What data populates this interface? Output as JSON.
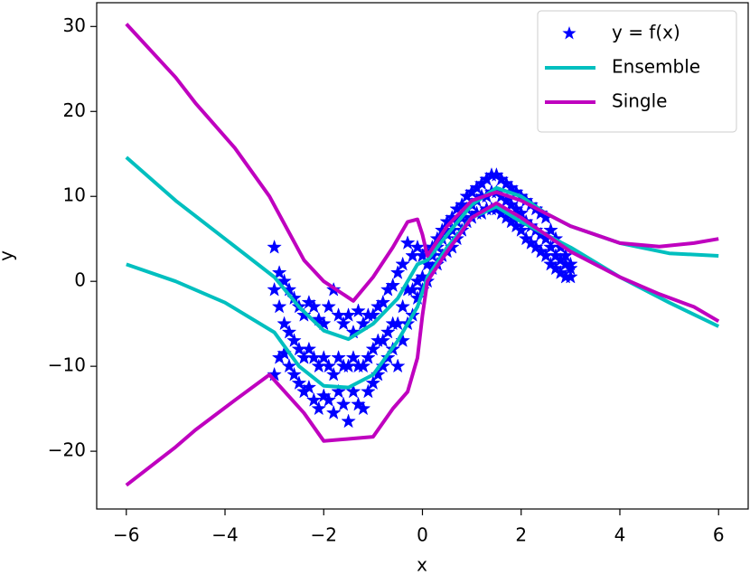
{
  "chart_data": {
    "type": "line",
    "xlabel": "x",
    "ylabel": "y",
    "xlim": [
      -6.6,
      6.6
    ],
    "ylim": [
      -26.8,
      32.8
    ],
    "xticks": [
      {
        "value": -6,
        "label": "−6"
      },
      {
        "value": -4,
        "label": "−4"
      },
      {
        "value": -2,
        "label": "−2"
      },
      0,
      2,
      4,
      6
    ],
    "yticks": [
      {
        "value": -20,
        "label": "−20"
      },
      {
        "value": -10,
        "label": "−10"
      },
      0,
      10,
      20,
      30
    ],
    "legend": "upper right",
    "series": [
      {
        "name": "y = f(x)",
        "type": "scatter",
        "marker": "star",
        "color": "#0000ff",
        "x": [
          -3,
          -2.9,
          -2.8,
          -2.7,
          -2.6,
          -2.5,
          -2.4,
          -2.3,
          -2.2,
          -2.1,
          -2,
          -1.9,
          -1.8,
          -1.7,
          -1.6,
          -1.5,
          -1.4,
          -1.3,
          -1.2,
          -1.1,
          -1,
          -0.9,
          -0.8,
          -0.7,
          -0.6,
          -0.5,
          -0.4,
          -0.3,
          -0.2,
          -0.1,
          0,
          0.1,
          0.2,
          0.3,
          0.4,
          0.5,
          0.6,
          0.7,
          0.8,
          0.9,
          1,
          1.1,
          1.2,
          1.3,
          1.4,
          1.5,
          1.6,
          1.7,
          1.8,
          1.9,
          2,
          2.1,
          2.2,
          2.3,
          2.4,
          2.5,
          2.6,
          2.7,
          2.8,
          2.9,
          3,
          -3,
          -2.9,
          -2.8,
          -2.7,
          -2.6,
          -2.5,
          -2.4,
          -2.3,
          -2.2,
          -2.1,
          -2,
          -1.9,
          -1.8,
          -1.7,
          -1.6,
          -1.5,
          -1.4,
          -1.3,
          -1.2,
          -1.1,
          -1,
          -0.9,
          -0.8,
          -0.7,
          -0.6,
          -0.5,
          -0.4,
          -0.3,
          -0.2,
          -0.1,
          0,
          0.1,
          0.2,
          0.3,
          0.4,
          0.5,
          0.6,
          0.7,
          0.8,
          0.9,
          1,
          1.1,
          1.2,
          1.3,
          1.4,
          1.5,
          1.6,
          1.7,
          1.8,
          1.9,
          2,
          2.1,
          2.2,
          2.3,
          2.4,
          2.5,
          2.6,
          2.7,
          2.8,
          2.9,
          3,
          -3,
          -2.9,
          -2.8,
          -2.7,
          -2.6,
          -2.5,
          -2.4,
          -2.3,
          -2.2,
          -2.1,
          -2,
          -1.9,
          -1.8,
          -1.7,
          -1.6,
          -1.5,
          -1.4,
          -1.3,
          -1.2,
          -1.1,
          -1,
          -0.9,
          -0.8,
          -0.7,
          -0.6,
          -0.5,
          -0.4,
          -0.3,
          -0.2,
          -0.1,
          0,
          0.1,
          0.2,
          0.3,
          0.4,
          0.5,
          0.6,
          0.7,
          0.8,
          0.9,
          1,
          1.1,
          1.2,
          1.3,
          1.4,
          1.5,
          1.6,
          1.7,
          1.8,
          1.9,
          2,
          2.1,
          2.2,
          2.3,
          2.4,
          2.5,
          2.6,
          2.7,
          2.8,
          2.9,
          3
        ],
        "values": [
          4,
          1,
          0,
          -1,
          -2,
          -3,
          -4,
          -2.5,
          -3,
          -4.5,
          -5,
          -3,
          -1,
          -4,
          -5,
          -4,
          -6,
          -3.5,
          -5,
          -4,
          -4,
          -3,
          -2.5,
          -1,
          -0.5,
          1,
          2,
          4.5,
          3,
          4,
          3,
          3.5,
          4,
          5,
          6,
          7,
          7.5,
          8.5,
          9,
          10,
          10.5,
          11,
          11.5,
          12,
          12.5,
          12.5,
          12,
          11.5,
          11,
          10.5,
          10,
          9.5,
          9,
          8.5,
          8,
          7.5,
          6,
          5,
          4,
          3,
          2,
          -11,
          -9,
          -8.5,
          -10,
          -11,
          -12,
          -13,
          -12.5,
          -14,
          -15,
          -13.5,
          -14,
          -15.5,
          -13,
          -14.5,
          -16.5,
          -13,
          -14.5,
          -15,
          -13,
          -12,
          -11,
          -10,
          -9,
          -8,
          -10,
          -7,
          -5,
          -4,
          -2,
          -1,
          0,
          1.5,
          2,
          3,
          3.5,
          4,
          5,
          6,
          7,
          7.5,
          8,
          8,
          8.5,
          8.5,
          8.5,
          8,
          7.5,
          7,
          6.5,
          6,
          5,
          4.5,
          4,
          3.5,
          3,
          2,
          1.5,
          1,
          0.5,
          0.5,
          -1,
          -3,
          -5,
          -6,
          -7,
          -8,
          -9,
          -8,
          -9,
          -10,
          -9,
          -10,
          -11,
          -9,
          -10,
          -10,
          -9,
          -10,
          -10,
          -9,
          -8,
          -7,
          -7,
          -6,
          -5,
          -5,
          -3,
          -1,
          -1,
          0,
          0.5,
          2,
          3,
          4,
          5,
          5.5,
          6,
          7,
          7.5,
          8.5,
          9,
          9.5,
          10,
          10,
          10.5,
          10.5,
          10,
          9.5,
          9,
          8.5,
          8,
          7,
          6.5,
          6,
          5.5,
          5,
          4,
          3,
          2.5,
          2,
          1.5
        ]
      },
      {
        "name": "Ensemble",
        "color": "#00bfbf",
        "x": [
          -6,
          -5,
          -4,
          -3,
          -2.5,
          -2,
          -1.5,
          -1,
          -0.5,
          -0.1,
          0.1,
          0.5,
          1,
          1.5,
          2,
          2.5,
          3,
          4,
          5,
          6
        ],
        "upper": [
          14.6,
          9.5,
          5,
          0.5,
          -3,
          -5.8,
          -6.8,
          -5,
          -2,
          2,
          2.5,
          5.5,
          9,
          11,
          10,
          8,
          6.5,
          4.5,
          3.3,
          3
        ],
        "lower": [
          2,
          0,
          -2.5,
          -6,
          -10,
          -12.3,
          -12.5,
          -11,
          -7,
          -3,
          0.5,
          4,
          7.5,
          8.8,
          7,
          5.5,
          4,
          0.5,
          -2.5,
          -5.3
        ]
      },
      {
        "name": "Single",
        "color": "#bf00bf",
        "x": [
          -6,
          -5,
          -4.6,
          -3.8,
          -3.1,
          -2.4,
          -2,
          -1.4,
          -1,
          -0.6,
          -0.3,
          -0.1,
          0,
          0.1,
          0.5,
          1,
          1.5,
          2,
          2.5,
          3,
          4,
          4.8,
          5.5,
          6
        ],
        "upper": [
          30.3,
          24,
          21,
          15.7,
          10,
          2.5,
          0,
          -2.3,
          0.5,
          4,
          7,
          7.3,
          5.5,
          3,
          6.5,
          9.5,
          10.5,
          9.5,
          8,
          6.5,
          4.5,
          4.1,
          4.5,
          5
        ],
        "lower": [
          -24,
          -19.5,
          -17.5,
          -14,
          -11,
          -15.5,
          -18.8,
          -18.5,
          -18.3,
          -15,
          -13,
          -9,
          -4,
          0,
          3.5,
          7.5,
          9.2,
          7.5,
          5.5,
          3.5,
          0.5,
          -1.5,
          -3,
          -4.7
        ]
      }
    ]
  }
}
